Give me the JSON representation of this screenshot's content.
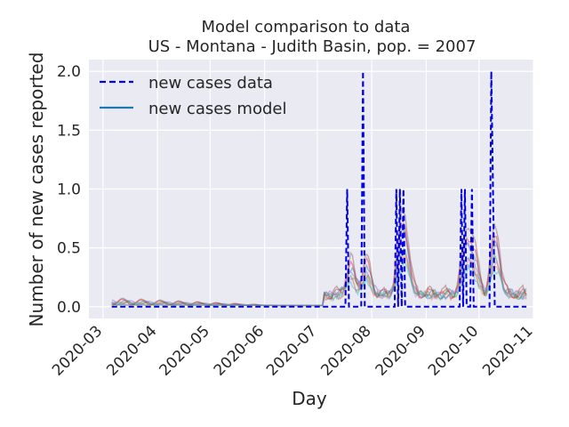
{
  "chart_data": {
    "type": "line",
    "title": "Model comparison to data",
    "subtitle": "US - Montana - Judith Basin, pop. = 2007",
    "xlabel": "Day",
    "ylabel": "Number of new cases reported",
    "x_range": [
      "2020-02-22",
      "2020-11-01"
    ],
    "ylim": [
      -0.1,
      2.1
    ],
    "y_ticks": [
      0.0,
      0.5,
      1.0,
      1.5,
      2.0
    ],
    "y_tick_labels": [
      "0.0",
      "0.5",
      "1.0",
      "1.5",
      "2.0"
    ],
    "x_ticks": [
      "2020-03-01",
      "2020-04-01",
      "2020-05-01",
      "2020-06-01",
      "2020-07-01",
      "2020-08-01",
      "2020-09-01",
      "2020-10-01",
      "2020-11-01"
    ],
    "x_tick_labels": [
      "2020-03",
      "2020-04",
      "2020-05",
      "2020-06",
      "2020-07",
      "2020-08",
      "2020-09",
      "2020-10",
      "2020-11"
    ],
    "grid": true,
    "legend_position": "top-left",
    "legend": [
      {
        "label": "new cases data",
        "style": "dashed",
        "color": "#0000dd"
      },
      {
        "label": "new cases model",
        "style": "solid",
        "color": "#1f77b4"
      }
    ],
    "series_data": {
      "name": "new cases data",
      "date_range": [
        "2020-03-06",
        "2020-10-28"
      ],
      "baseline": 0,
      "spikes": [
        {
          "date": "2020-07-18",
          "value": 1
        },
        {
          "date": "2020-07-27",
          "value": 2
        },
        {
          "date": "2020-08-15",
          "value": 1
        },
        {
          "date": "2020-08-17",
          "value": 1
        },
        {
          "date": "2020-08-19",
          "value": 1
        },
        {
          "date": "2020-09-21",
          "value": 1
        },
        {
          "date": "2020-09-23",
          "value": 1
        },
        {
          "date": "2020-09-27",
          "value": 1
        },
        {
          "date": "2020-10-08",
          "value": 2
        },
        {
          "date": "2020-10-09",
          "value": 1
        }
      ]
    },
    "series_model": {
      "name": "new cases model",
      "num_samples": 8,
      "start_date": "2020-03-06",
      "end_date": "2020-10-28",
      "colors": [
        "#1f77b4",
        "#ff7f0e",
        "#2ca02c",
        "#d62728",
        "#9467bd",
        "#8c564b",
        "#e377c2",
        "#17becf"
      ]
    },
    "style": {
      "plot_bg": "#eaeaf2",
      "grid_color": "#ffffff",
      "data_color": "#0000dd"
    }
  }
}
